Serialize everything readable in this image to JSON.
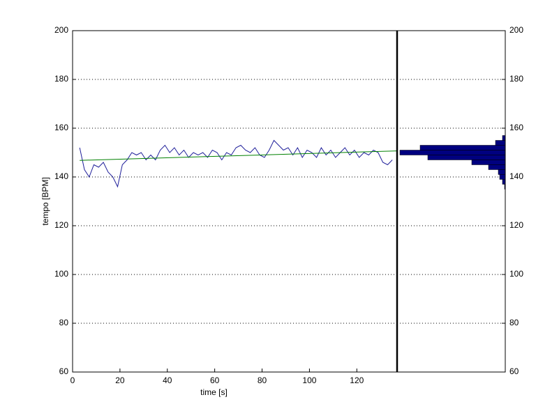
{
  "chart_data": [
    {
      "type": "line",
      "xlabel": "time [s]",
      "ylabel": "tempo [BPM]",
      "xlim": [
        0,
        137
      ],
      "ylim": [
        60,
        200
      ],
      "xticks": [
        0,
        20,
        40,
        60,
        80,
        100,
        120
      ],
      "yticks": [
        60,
        80,
        100,
        120,
        140,
        160,
        180,
        200
      ],
      "grid": true,
      "series": [
        {
          "color": "#1f1f9a",
          "x": [
            3,
            5,
            7,
            9,
            11,
            13,
            15,
            17,
            19,
            21,
            23,
            25,
            27,
            29,
            31,
            33,
            35,
            37,
            39,
            41,
            43,
            45,
            47,
            49,
            51,
            53,
            55,
            57,
            59,
            61,
            63,
            65,
            67,
            69,
            71,
            73,
            75,
            77,
            79,
            81,
            83,
            85,
            87,
            89,
            91,
            93,
            95,
            97,
            99,
            101,
            103,
            105,
            107,
            109,
            111,
            113,
            115,
            117,
            119,
            121,
            123,
            125,
            127,
            129,
            131,
            133,
            135
          ],
          "values": [
            152,
            143,
            140,
            145,
            144,
            146,
            142,
            140,
            136,
            145,
            147,
            150,
            149,
            150,
            147,
            149,
            147,
            151,
            153,
            150,
            152,
            149,
            151,
            148,
            150,
            149,
            150,
            148,
            151,
            150,
            147,
            150,
            149,
            152,
            153,
            151,
            150,
            152,
            149,
            148,
            151,
            155,
            153,
            151,
            152,
            149,
            152,
            148,
            151,
            150,
            148,
            152,
            149,
            151,
            148,
            150,
            152,
            149,
            151,
            148,
            150,
            149,
            151,
            150,
            146,
            145,
            147
          ]
        },
        {
          "color": "#008000",
          "x": [
            3,
            137
          ],
          "values": [
            146.8,
            150.7
          ]
        }
      ]
    },
    {
      "type": "histogram",
      "orientation": "horizontal",
      "reversed": true,
      "yaxis_side": "right",
      "color": "#00007f",
      "grid": true,
      "bins": [
        135,
        137,
        139,
        141,
        143,
        145,
        147,
        149,
        151,
        153,
        155,
        157
      ],
      "counts": [
        1,
        4,
        8,
        10,
        24,
        48,
        111,
        151,
        122,
        14,
        4
      ],
      "xlim": [
        0,
        155
      ],
      "ylim": [
        60,
        200
      ],
      "yticks": [
        60,
        80,
        100,
        120,
        140,
        160,
        180,
        200
      ]
    }
  ]
}
